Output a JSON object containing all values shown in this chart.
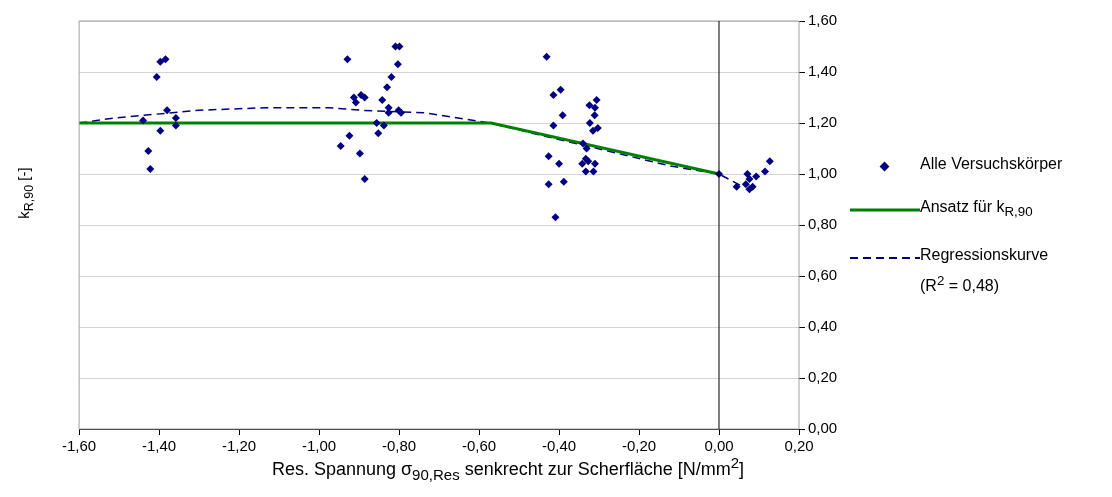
{
  "chart_data": {
    "type": "scatter",
    "xlabel": "Res. Spannung σ$_{90,Res}$ senkrecht zur Scherfläche  [N/mm$^{2}$]",
    "ylabel": "k$_{R,90}$ [-]",
    "xlim": [
      -1.6,
      0.2
    ],
    "xticks": [
      {
        "value": -1.6,
        "label": "-1,60"
      },
      {
        "value": -1.4,
        "label": "-1,40"
      },
      {
        "value": -1.2,
        "label": "-1,20"
      },
      {
        "value": -1.0,
        "label": "-1,00"
      },
      {
        "value": -0.8,
        "label": "-0,80"
      },
      {
        "value": -0.6,
        "label": "-0,60"
      },
      {
        "value": -0.4,
        "label": "-0,40"
      },
      {
        "value": -0.2,
        "label": "-0,20"
      },
      {
        "value": 0,
        "label": "0,00"
      },
      {
        "value": 0.2,
        "label": "0,20"
      }
    ],
    "ylim": [
      0,
      1.6
    ],
    "yticks": [
      {
        "value": 0,
        "label": "0,00"
      },
      {
        "value": 0.2,
        "label": "0,20"
      },
      {
        "value": 0.4,
        "label": "0,40"
      },
      {
        "value": 0.6,
        "label": "0,60"
      },
      {
        "value": 0.8,
        "label": "0,80"
      },
      {
        "value": 1.0,
        "label": "1,00"
      },
      {
        "value": 1.2,
        "label": "1,20"
      },
      {
        "value": 1.4,
        "label": "1,40"
      },
      {
        "value": 1.6,
        "label": "1,60"
      }
    ],
    "grid": "y",
    "legend": "right",
    "ref_lines": [
      {
        "axis": "x",
        "value": 0,
        "color": "#000000"
      }
    ],
    "series": [
      {
        "name": "Alle Versuchskörper",
        "type": "scatter",
        "marker": "diamond",
        "color": "#000080",
        "x": [
          -1.44,
          -1.427,
          -1.422,
          -1.406,
          -1.397,
          -1.384,
          -1.397,
          -1.38,
          -1.358,
          -1.358,
          -0.929,
          -0.946,
          -0.924,
          -0.913,
          -0.908,
          -0.895,
          -0.886,
          -0.898,
          -0.886,
          -0.856,
          -0.852,
          -0.838,
          -0.842,
          -0.83,
          -0.819,
          -0.803,
          -0.809,
          -0.799,
          -0.826,
          -0.826,
          -0.801,
          -0.795,
          -0.431,
          -0.414,
          -0.396,
          -0.391,
          -0.414,
          -0.426,
          -0.4,
          -0.426,
          -0.388,
          -0.409,
          -0.324,
          -0.306,
          -0.31,
          -0.311,
          -0.323,
          -0.303,
          -0.315,
          -0.34,
          -0.331,
          -0.333,
          -0.342,
          -0.327,
          -0.31,
          -0.333,
          -0.314,
          0,
          0.044,
          0.071,
          0.076,
          0.067,
          0.076,
          0.084,
          0.093,
          0.115,
          0.127
        ],
        "values": [
          1.21,
          1.09,
          1.02,
          1.38,
          1.44,
          1.45,
          1.17,
          1.25,
          1.22,
          1.19,
          1.45,
          1.11,
          1.15,
          1.3,
          1.28,
          1.31,
          1.3,
          1.08,
          0.98,
          1.2,
          1.16,
          1.19,
          1.29,
          1.34,
          1.38,
          1.43,
          1.5,
          1.5,
          1.26,
          1.24,
          1.25,
          1.24,
          1.46,
          1.31,
          1.33,
          1.23,
          1.19,
          1.07,
          1.04,
          0.96,
          0.97,
          0.83,
          1.27,
          1.29,
          1.26,
          1.23,
          1.2,
          1.18,
          1.17,
          1.12,
          1.1,
          1.06,
          1.04,
          1.05,
          1.04,
          1.01,
          1.01,
          1.0,
          0.95,
          1.0,
          0.98,
          0.96,
          0.94,
          0.95,
          0.99,
          1.01,
          1.05
        ]
      },
      {
        "name": "Ansatz für k$_{R,90}$",
        "type": "line",
        "color": "#008000",
        "line_style": "solid",
        "marker": "none",
        "x": [
          -1.6,
          -0.57,
          0
        ],
        "values": [
          1.2,
          1.2,
          1.0
        ]
      },
      {
        "name": "Regressionskurve (R$^{2}$ = 0,48)",
        "type": "line",
        "color": "#000080",
        "line_style": "dashed",
        "marker": "none",
        "x": [
          -1.6,
          -1.51,
          -1.3,
          -1.135,
          -0.975,
          -0.895,
          -0.734,
          -0.573,
          -0.44,
          -0.278,
          -0.117,
          0,
          0.06
        ],
        "values": [
          1.2,
          1.22,
          1.25,
          1.26,
          1.26,
          1.25,
          1.24,
          1.2,
          1.15,
          1.09,
          1.03,
          1.0,
          0.95
        ]
      }
    ]
  }
}
